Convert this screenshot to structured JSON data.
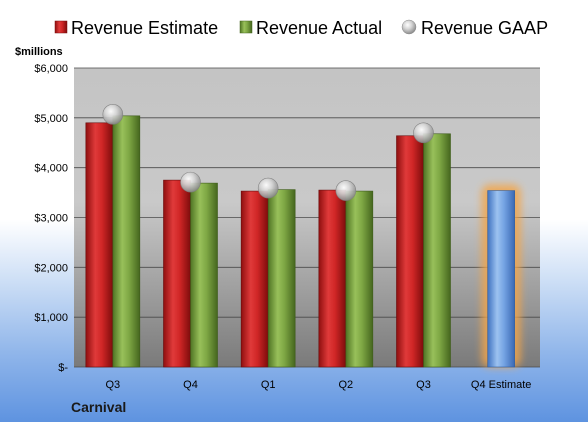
{
  "chart_data": {
    "type": "bar",
    "categories": [
      "Q3",
      "Q4",
      "Q1",
      "Q2",
      "Q3",
      "Q4 Estimate"
    ],
    "series": [
      {
        "name": "Revenue Estimate",
        "color": "#cc1f1f",
        "values": [
          4900,
          3750,
          3530,
          3550,
          4640,
          3540
        ],
        "style": "bar"
      },
      {
        "name": "Revenue Actual",
        "color": "#6f9a3a",
        "values": [
          5040,
          3690,
          3560,
          3530,
          4680,
          null
        ],
        "style": "bar"
      },
      {
        "name": "Revenue GAAP",
        "color": "#b9b9b9",
        "values": [
          5070,
          3710,
          3590,
          3540,
          4700,
          null
        ],
        "style": "marker"
      }
    ],
    "highlight": {
      "category_index": 5,
      "color": "#6b9ee0",
      "glow": "#f3a54a"
    },
    "ylabel": "$millions",
    "ylim": [
      0,
      6000
    ],
    "yticks": [
      {
        "value": 0,
        "label": "$-"
      },
      {
        "value": 1000,
        "label": "$1,000"
      },
      {
        "value": 2000,
        "label": "$2,000"
      },
      {
        "value": 3000,
        "label": "$3,000"
      },
      {
        "value": 4000,
        "label": "$4,000"
      },
      {
        "value": 5000,
        "label": "$5,000"
      },
      {
        "value": 6000,
        "label": "$6,000"
      }
    ],
    "company": "Carnival",
    "legend_position": "top",
    "grid": true
  }
}
